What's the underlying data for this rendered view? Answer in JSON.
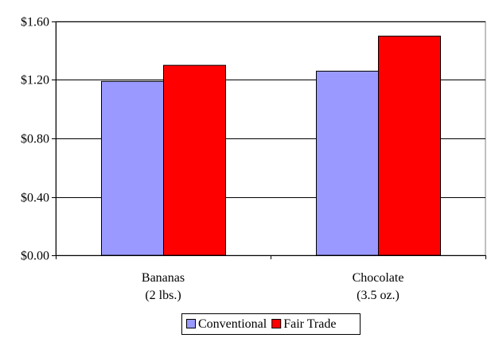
{
  "chart_data": {
    "type": "bar",
    "categories": [
      [
        "Bananas",
        "(2 lbs.)"
      ],
      [
        "Chocolate",
        "(3.5 oz.)"
      ]
    ],
    "series": [
      {
        "name": "Conventional",
        "values": [
          1.19,
          1.26
        ],
        "color": "#9999ff"
      },
      {
        "name": "Fair Trade",
        "values": [
          1.3,
          1.5
        ],
        "color": "#ff0000"
      }
    ],
    "y_ticks": [
      "$0.00",
      "$0.40",
      "$0.80",
      "$1.20",
      "$1.60"
    ],
    "ylim": [
      0,
      1.6
    ],
    "y_step": 0.4,
    "grid": true,
    "legend_position": "bottom-center",
    "title": "",
    "xlabel": "",
    "ylabel": ""
  }
}
